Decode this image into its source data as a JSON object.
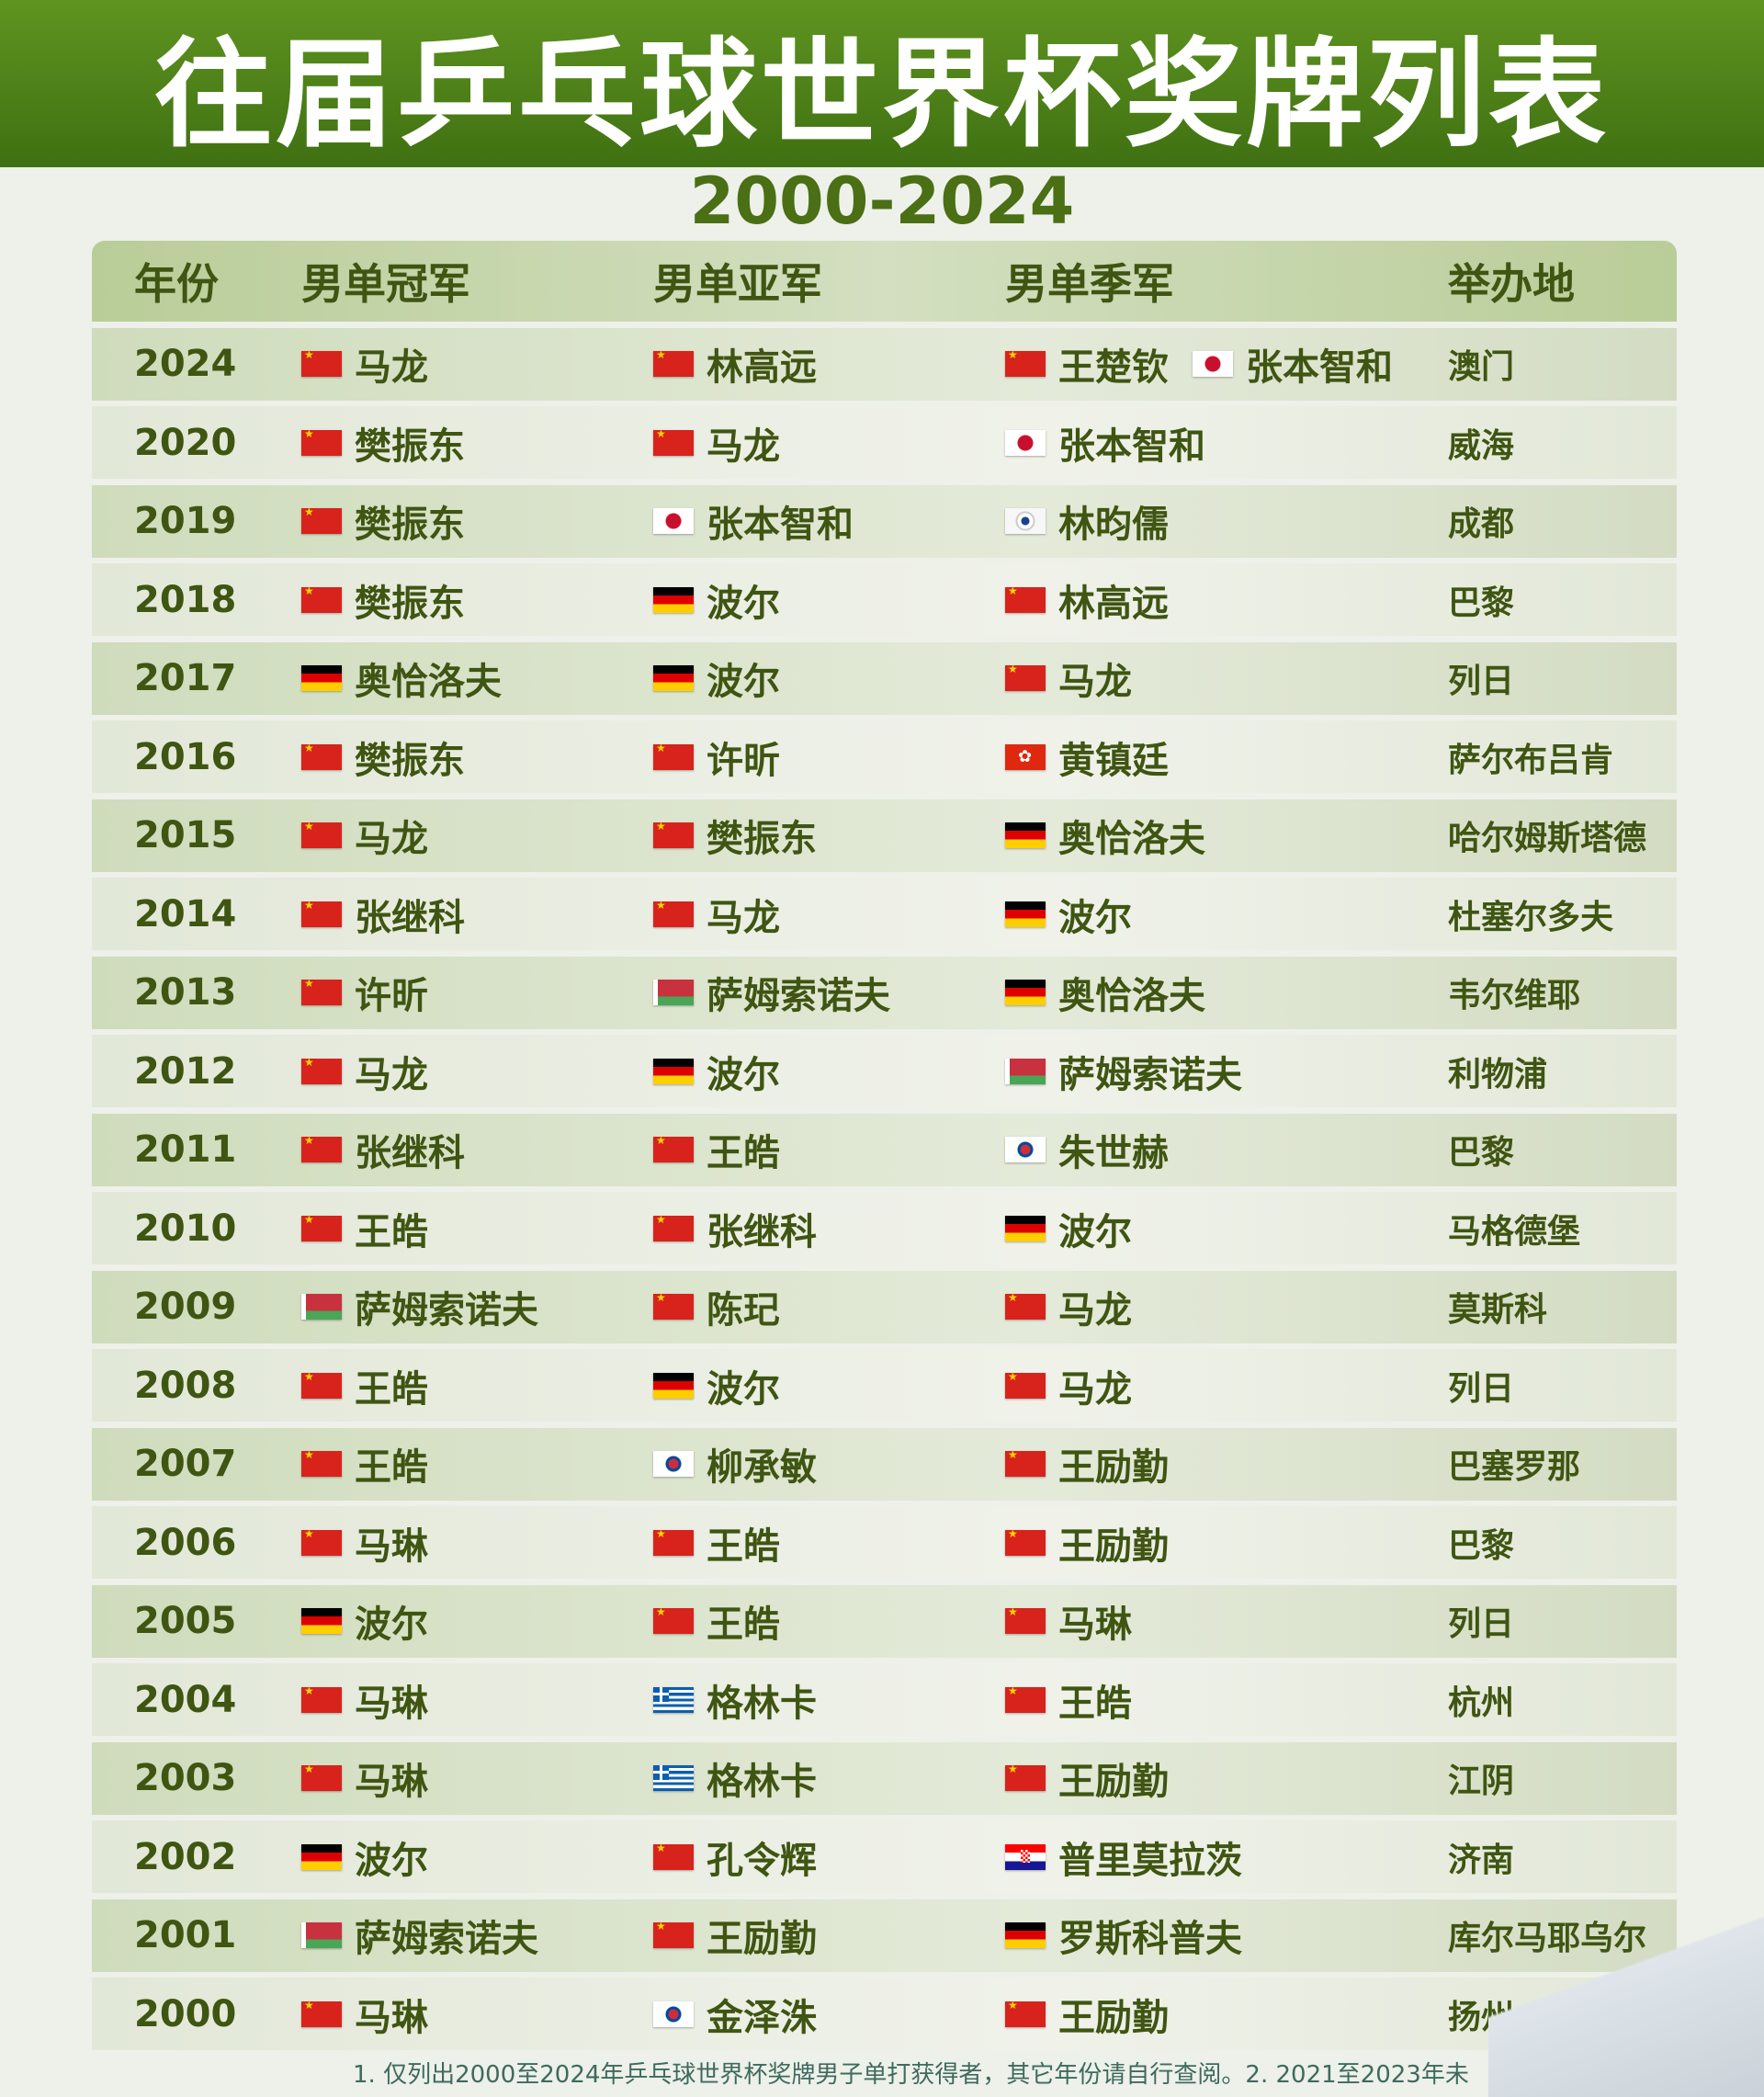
{
  "title": "往届乒乓球世界杯奖牌列表",
  "subtitle": "2000-2024",
  "headers": [
    "年份",
    "男单冠军",
    "男单亚军",
    "男单季军",
    "举办地"
  ],
  "rows": [
    {
      "year": "2024",
      "champion": {
        "flag": "cn",
        "name": "马龙"
      },
      "runner_up": {
        "flag": "cn",
        "name": "林高远"
      },
      "third": [
        {
          "flag": "cn",
          "name": "王楚钦"
        },
        {
          "flag": "jp",
          "name": "张本智和"
        }
      ],
      "host": "澳门"
    },
    {
      "year": "2020",
      "champion": {
        "flag": "cn",
        "name": "樊振东"
      },
      "runner_up": {
        "flag": "cn",
        "name": "马龙"
      },
      "third": [
        {
          "flag": "jp",
          "name": "张本智和"
        }
      ],
      "host": "威海"
    },
    {
      "year": "2019",
      "champion": {
        "flag": "cn",
        "name": "樊振东"
      },
      "runner_up": {
        "flag": "jp",
        "name": "张本智和"
      },
      "third": [
        {
          "flag": "tpe",
          "name": "林昀儒"
        }
      ],
      "host": "成都"
    },
    {
      "year": "2018",
      "champion": {
        "flag": "cn",
        "name": "樊振东"
      },
      "runner_up": {
        "flag": "de",
        "name": "波尔"
      },
      "third": [
        {
          "flag": "cn",
          "name": "林高远"
        }
      ],
      "host": "巴黎"
    },
    {
      "year": "2017",
      "champion": {
        "flag": "de",
        "name": "奥恰洛夫"
      },
      "runner_up": {
        "flag": "de",
        "name": "波尔"
      },
      "third": [
        {
          "flag": "cn",
          "name": "马龙"
        }
      ],
      "host": "列日"
    },
    {
      "year": "2016",
      "champion": {
        "flag": "cn",
        "name": "樊振东"
      },
      "runner_up": {
        "flag": "cn",
        "name": "许昕"
      },
      "third": [
        {
          "flag": "hk",
          "name": "黄镇廷"
        }
      ],
      "host": "萨尔布吕肯"
    },
    {
      "year": "2015",
      "champion": {
        "flag": "cn",
        "name": "马龙"
      },
      "runner_up": {
        "flag": "cn",
        "name": "樊振东"
      },
      "third": [
        {
          "flag": "de",
          "name": "奥恰洛夫"
        }
      ],
      "host": "哈尔姆斯塔德"
    },
    {
      "year": "2014",
      "champion": {
        "flag": "cn",
        "name": "张继科"
      },
      "runner_up": {
        "flag": "cn",
        "name": "马龙"
      },
      "third": [
        {
          "flag": "de",
          "name": "波尔"
        }
      ],
      "host": "杜塞尔多夫"
    },
    {
      "year": "2013",
      "champion": {
        "flag": "cn",
        "name": "许昕"
      },
      "runner_up": {
        "flag": "blr",
        "name": "萨姆索诺夫"
      },
      "third": [
        {
          "flag": "de",
          "name": "奥恰洛夫"
        }
      ],
      "host": "韦尔维耶"
    },
    {
      "year": "2012",
      "champion": {
        "flag": "cn",
        "name": "马龙"
      },
      "runner_up": {
        "flag": "de",
        "name": "波尔"
      },
      "third": [
        {
          "flag": "blr",
          "name": "萨姆索诺夫"
        }
      ],
      "host": "利物浦"
    },
    {
      "year": "2011",
      "champion": {
        "flag": "cn",
        "name": "张继科"
      },
      "runner_up": {
        "flag": "cn",
        "name": "王皓"
      },
      "third": [
        {
          "flag": "kor",
          "name": "朱世赫"
        }
      ],
      "host": "巴黎"
    },
    {
      "year": "2010",
      "champion": {
        "flag": "cn",
        "name": "王皓"
      },
      "runner_up": {
        "flag": "cn",
        "name": "张继科"
      },
      "third": [
        {
          "flag": "de",
          "name": "波尔"
        }
      ],
      "host": "马格德堡"
    },
    {
      "year": "2009",
      "champion": {
        "flag": "blr",
        "name": "萨姆索诺夫"
      },
      "runner_up": {
        "flag": "cn",
        "name": "陈玘"
      },
      "third": [
        {
          "flag": "cn",
          "name": "马龙"
        }
      ],
      "host": "莫斯科"
    },
    {
      "year": "2008",
      "champion": {
        "flag": "cn",
        "name": "王皓"
      },
      "runner_up": {
        "flag": "de",
        "name": "波尔"
      },
      "third": [
        {
          "flag": "cn",
          "name": "马龙"
        }
      ],
      "host": "列日"
    },
    {
      "year": "2007",
      "champion": {
        "flag": "cn",
        "name": "王皓"
      },
      "runner_up": {
        "flag": "kor",
        "name": "柳承敏"
      },
      "third": [
        {
          "flag": "cn",
          "name": "王励勤"
        }
      ],
      "host": "巴塞罗那"
    },
    {
      "year": "2006",
      "champion": {
        "flag": "cn",
        "name": "马琳"
      },
      "runner_up": {
        "flag": "cn",
        "name": "王皓"
      },
      "third": [
        {
          "flag": "cn",
          "name": "王励勤"
        }
      ],
      "host": "巴黎"
    },
    {
      "year": "2005",
      "champion": {
        "flag": "de",
        "name": "波尔"
      },
      "runner_up": {
        "flag": "cn",
        "name": "王皓"
      },
      "third": [
        {
          "flag": "cn",
          "name": "马琳"
        }
      ],
      "host": "列日"
    },
    {
      "year": "2004",
      "champion": {
        "flag": "cn",
        "name": "马琳"
      },
      "runner_up": {
        "flag": "gre",
        "name": "格林卡"
      },
      "third": [
        {
          "flag": "cn",
          "name": "王皓"
        }
      ],
      "host": "杭州"
    },
    {
      "year": "2003",
      "champion": {
        "flag": "cn",
        "name": "马琳"
      },
      "runner_up": {
        "flag": "gre",
        "name": "格林卡"
      },
      "third": [
        {
          "flag": "cn",
          "name": "王励勤"
        }
      ],
      "host": "江阴"
    },
    {
      "year": "2002",
      "champion": {
        "flag": "de",
        "name": "波尔"
      },
      "runner_up": {
        "flag": "cn",
        "name": "孔令辉"
      },
      "third": [
        {
          "flag": "cro",
          "name": "普里莫拉茨"
        }
      ],
      "host": "济南"
    },
    {
      "year": "2001",
      "champion": {
        "flag": "blr",
        "name": "萨姆索诺夫"
      },
      "runner_up": {
        "flag": "cn",
        "name": "王励勤"
      },
      "third": [
        {
          "flag": "de",
          "name": "罗斯科普夫"
        }
      ],
      "host": "库尔马耶乌尔"
    },
    {
      "year": "2000",
      "champion": {
        "flag": "cn",
        "name": "马琳"
      },
      "runner_up": {
        "flag": "kor",
        "name": "金泽洙"
      },
      "third": [
        {
          "flag": "cn",
          "name": "王励勤"
        }
      ],
      "host": "扬州"
    }
  ],
  "footnote": "1. 仅列出2000至2024年乒乓球世界杯奖牌男子单打获得者，其它年份请自行查阅。2. 2021至2023年未"
}
